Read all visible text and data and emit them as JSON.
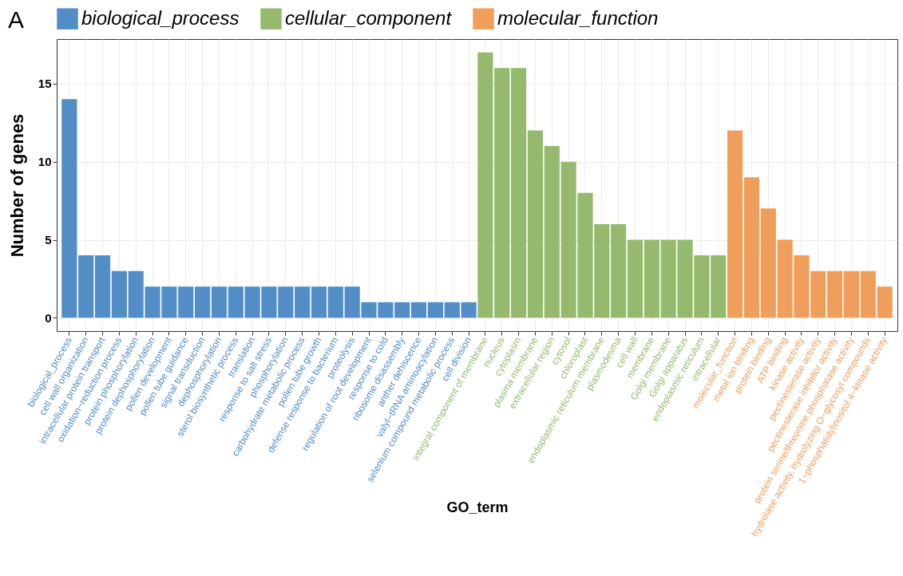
{
  "chart_data": {
    "type": "bar",
    "annotations": [
      "A"
    ],
    "xlabel": "GO_term",
    "ylabel": "Number of genes",
    "categories": [
      "biological_process",
      "cell wall organization",
      "intracellular protein transport",
      "oxidation−reduction process",
      "protein phosphorylation",
      "protein dephosphorylation",
      "pollen development",
      "pollen tube guidance",
      "signal transduction",
      "dephosphorylation",
      "sterol biosynthetic process",
      "translation",
      "response to salt stress",
      "phosphorylation",
      "carbohydrate metabolic process",
      "pollen tube growth",
      "defense response to bacterium",
      "proteolysis",
      "regulation of root development",
      "response to cold",
      "ribosome disassembly",
      "anther dehiscence",
      "valyl−tRNA aminoacylation",
      "selenium compound metabolic process",
      "cell division",
      "integral component of membrane",
      "nucleus",
      "cytoplasm",
      "plasma membrane",
      "extracellular region",
      "cytosol",
      "chloroplast",
      "endoplasmic reticulum membrane",
      "plasmodesma",
      "cell wall",
      "membrane",
      "Golgi membrane",
      "Golgi apparatus",
      "endoplasmic reticulum",
      "intracellular",
      "molecular_function",
      "metal ion binding",
      "protein binding",
      "ATP binding",
      "kinase activity",
      "pectinesterase activity",
      "pectinesterase inhibitor activity",
      "protein serine/threonine phosphatase activity",
      "hydrolase activity, hydrolyzing O−glycosyl compounds",
      "1−phosphatidylinositol 4−kinase activity"
    ],
    "series": [
      {
        "name": "biological_process",
        "color": "#528dc6",
        "values": [
          14,
          4,
          4,
          3,
          3,
          2,
          2,
          2,
          2,
          2,
          2,
          2,
          2,
          2,
          2,
          2,
          2,
          2,
          1,
          1,
          1,
          1,
          1,
          1,
          1,
          null,
          null,
          null,
          null,
          null,
          null,
          null,
          null,
          null,
          null,
          null,
          null,
          null,
          null,
          null,
          null,
          null,
          null,
          null,
          null,
          null,
          null,
          null,
          null,
          null
        ]
      },
      {
        "name": "cellular_component",
        "color": "#95ba6e",
        "values": [
          null,
          null,
          null,
          null,
          null,
          null,
          null,
          null,
          null,
          null,
          null,
          null,
          null,
          null,
          null,
          null,
          null,
          null,
          null,
          null,
          null,
          null,
          null,
          null,
          null,
          17,
          16,
          16,
          12,
          11,
          10,
          8,
          6,
          6,
          5,
          5,
          5,
          5,
          4,
          4,
          null,
          null,
          null,
          null,
          null,
          null,
          null,
          null,
          null,
          null
        ]
      },
      {
        "name": "molecular_function",
        "color": "#f09e5c",
        "values": [
          null,
          null,
          null,
          null,
          null,
          null,
          null,
          null,
          null,
          null,
          null,
          null,
          null,
          null,
          null,
          null,
          null,
          null,
          null,
          null,
          null,
          null,
          null,
          null,
          null,
          null,
          null,
          null,
          null,
          null,
          null,
          null,
          null,
          null,
          null,
          null,
          null,
          null,
          null,
          null,
          12,
          9,
          7,
          5,
          4,
          3,
          3,
          3,
          3,
          2
        ]
      }
    ],
    "ylim": [
      -0.85,
      17.85
    ],
    "yticks": [
      0,
      5,
      10,
      15
    ],
    "grid": true,
    "legend": "top"
  }
}
